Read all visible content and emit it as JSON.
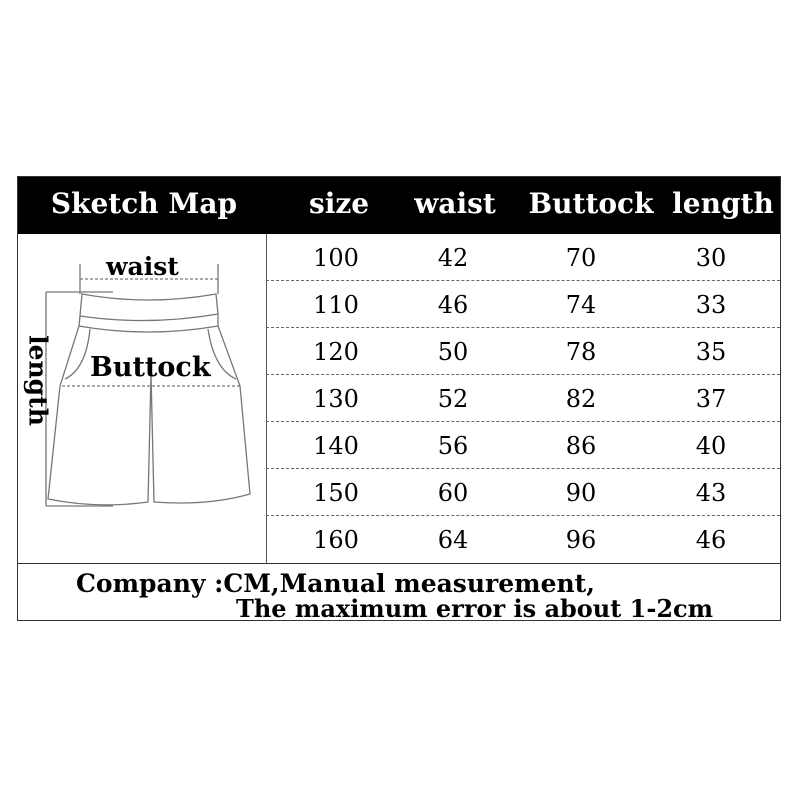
{
  "header": {
    "columns": [
      "Sketch Map",
      "size",
      "waist",
      "Buttock",
      "length"
    ]
  },
  "sketch": {
    "waist_label": "waist",
    "buttock_label": "Buttock",
    "length_label": "length",
    "icon": "shorts-diagram"
  },
  "rows": [
    [
      "100",
      "42",
      "70",
      "30"
    ],
    [
      "110",
      "46",
      "74",
      "33"
    ],
    [
      "120",
      "50",
      "78",
      "35"
    ],
    [
      "130",
      "52",
      "82",
      "37"
    ],
    [
      "140",
      "56",
      "86",
      "40"
    ],
    [
      "150",
      "60",
      "90",
      "43"
    ],
    [
      "160",
      "64",
      "96",
      "46"
    ]
  ],
  "footer": {
    "line1": "Company :CM,Manual measurement,",
    "line2": "The maximum error is about 1-2cm"
  }
}
